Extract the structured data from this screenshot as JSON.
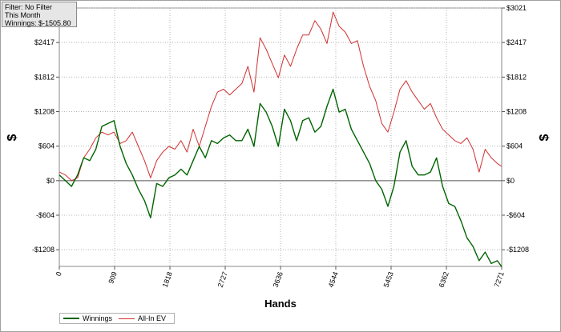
{
  "filter_box": {
    "filter": "Filter: No Filter",
    "period": "This Month",
    "winnings": "Winnings: $-1505.80"
  },
  "chart_data": {
    "type": "line",
    "xlabel": "Hands",
    "ylabel": "$",
    "xlim": [
      0,
      7271
    ],
    "ylim": [
      -1500,
      3021
    ],
    "x_ticks": [
      0,
      909,
      1818,
      2727,
      3636,
      4544,
      5453,
      6362,
      7271
    ],
    "x_tick_labels": [
      "0",
      "909",
      "1818",
      "2727",
      "3636",
      "4544",
      "5453",
      "6362",
      "7271"
    ],
    "y_ticks": [
      -1208,
      -604,
      0,
      604,
      1208,
      1812,
      2417,
      3021
    ],
    "y_tick_labels": [
      "-$1208",
      "-$604",
      "$0",
      "$604",
      "$1208",
      "$1812",
      "$2417",
      "$3021"
    ],
    "grid": true,
    "legend_position": "bottom-left",
    "series": [
      {
        "name": "Winnings",
        "color": "#006400",
        "x": [
          0,
          100,
          200,
          300,
          400,
          500,
          600,
          700,
          800,
          900,
          1000,
          1100,
          1200,
          1300,
          1400,
          1500,
          1600,
          1700,
          1800,
          1900,
          2000,
          2100,
          2200,
          2300,
          2400,
          2500,
          2600,
          2700,
          2800,
          2900,
          3000,
          3100,
          3200,
          3300,
          3400,
          3500,
          3600,
          3700,
          3800,
          3900,
          4000,
          4100,
          4200,
          4300,
          4400,
          4500,
          4600,
          4700,
          4800,
          4900,
          5000,
          5100,
          5200,
          5300,
          5400,
          5500,
          5600,
          5700,
          5800,
          5900,
          6000,
          6100,
          6200,
          6300,
          6400,
          6500,
          6600,
          6700,
          6800,
          6900,
          7000,
          7100,
          7200,
          7271
        ],
        "values": [
          100,
          0,
          -100,
          100,
          400,
          350,
          550,
          950,
          1000,
          1050,
          600,
          300,
          100,
          -150,
          -350,
          -650,
          -50,
          -100,
          50,
          100,
          200,
          100,
          350,
          600,
          400,
          700,
          650,
          750,
          800,
          700,
          700,
          900,
          600,
          1350,
          1200,
          950,
          600,
          1250,
          1050,
          700,
          1050,
          1100,
          850,
          950,
          1300,
          1600,
          1200,
          1250,
          900,
          700,
          500,
          300,
          0,
          -150,
          -450,
          -100,
          500,
          700,
          250,
          100,
          100,
          150,
          400,
          -100,
          -400,
          -450,
          -700,
          -1000,
          -1150,
          -1400,
          -1250,
          -1450,
          -1400,
          -1505.8
        ]
      },
      {
        "name": "All-In EV",
        "color": "#d03030",
        "x": [
          0,
          100,
          200,
          300,
          400,
          500,
          600,
          700,
          800,
          900,
          1000,
          1100,
          1200,
          1300,
          1400,
          1500,
          1600,
          1700,
          1800,
          1900,
          2000,
          2100,
          2200,
          2300,
          2400,
          2500,
          2600,
          2700,
          2800,
          2900,
          3000,
          3100,
          3200,
          3300,
          3400,
          3500,
          3600,
          3700,
          3800,
          3900,
          4000,
          4100,
          4200,
          4300,
          4400,
          4500,
          4600,
          4700,
          4800,
          4900,
          5000,
          5100,
          5200,
          5300,
          5400,
          5500,
          5600,
          5700,
          5800,
          5900,
          6000,
          6100,
          6200,
          6300,
          6400,
          6500,
          6600,
          6700,
          6800,
          6900,
          7000,
          7100,
          7200,
          7271
        ],
        "values": [
          150,
          100,
          0,
          50,
          400,
          550,
          750,
          850,
          800,
          850,
          650,
          700,
          850,
          600,
          350,
          50,
          350,
          500,
          600,
          550,
          700,
          500,
          900,
          600,
          950,
          1300,
          1550,
          1600,
          1500,
          1600,
          1700,
          2000,
          1550,
          2500,
          2300,
          2050,
          1800,
          2200,
          2000,
          2300,
          2550,
          2550,
          2800,
          2650,
          2400,
          2950,
          2700,
          2600,
          2400,
          2450,
          2000,
          1650,
          1400,
          1000,
          850,
          1200,
          1600,
          1750,
          1550,
          1400,
          1250,
          1350,
          1100,
          900,
          800,
          700,
          650,
          750,
          550,
          150,
          550,
          400,
          300,
          250
        ]
      }
    ]
  }
}
